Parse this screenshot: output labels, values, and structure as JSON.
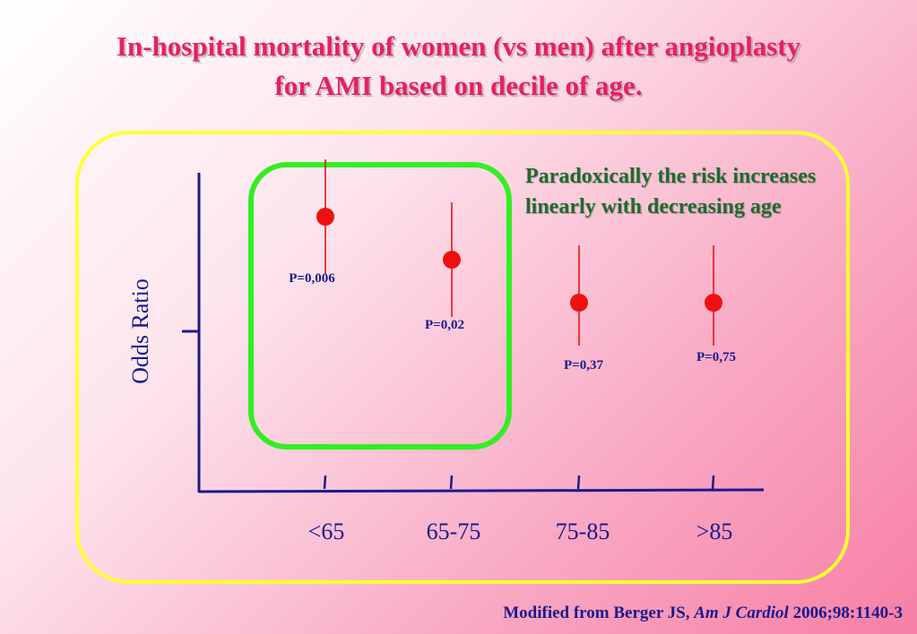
{
  "slide": {
    "title_line1": "In-hospital mortality of women (vs men) after angioplasty",
    "title_line2": "for AMI based on decile of age.",
    "annotation_line1": "Paradoxically the risk increases",
    "annotation_line2": "linearly with decreasing age",
    "source_prefix": "Modified from Berger JS,",
    "source_journal": "Am J Cardiol",
    "source_suffix": "2006;98:1140-3"
  },
  "colors": {
    "title": "#e8205f",
    "annotation": "#1f6b2d",
    "axis": "#1a1a8c",
    "marker": "#ee1111",
    "highlight_box": "#33ee22",
    "frame_box": "#ffff33"
  },
  "chart_data": {
    "type": "scatter",
    "ylabel": "Odds Ratio",
    "xlabel": "",
    "categories": [
      "<65",
      "65-75",
      "75-85",
      ">85"
    ],
    "reference_value": 1,
    "ylim": [
      0.2,
      2.4
    ],
    "points": [
      {
        "category": "<65",
        "estimate": 1.8,
        "ci_low": 1.4,
        "ci_high": 2.2,
        "p_label": "P=0,006"
      },
      {
        "category": "65-75",
        "estimate": 1.5,
        "ci_low": 1.1,
        "ci_high": 1.9,
        "p_label": "P=0,02"
      },
      {
        "category": "75-85",
        "estimate": 1.2,
        "ci_low": 0.9,
        "ci_high": 1.6,
        "p_label": "P=0,37"
      },
      {
        "category": ">85",
        "estimate": 1.2,
        "ci_low": 0.9,
        "ci_high": 1.6,
        "p_label": "P=0,75"
      }
    ],
    "highlighted_categories": [
      "<65",
      "65-75"
    ],
    "grid": false,
    "legend": "none"
  }
}
